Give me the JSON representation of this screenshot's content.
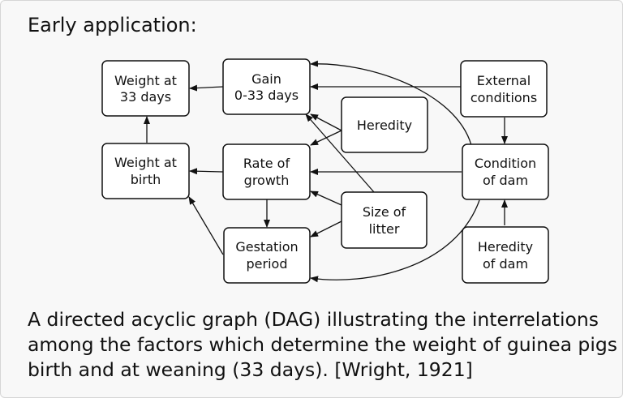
{
  "heading": "Early application:",
  "nodes": {
    "weight_33": [
      "Weight at",
      "33 days"
    ],
    "gain": [
      "Gain",
      "0-33 days"
    ],
    "external": [
      "External",
      "conditions"
    ],
    "heredity": [
      "Heredity"
    ],
    "weight_birth": [
      "Weight at",
      "birth"
    ],
    "rate_growth": [
      "Rate of",
      "growth"
    ],
    "condition_dam": [
      "Condition",
      "of dam"
    ],
    "size_litter": [
      "Size of",
      "litter"
    ],
    "gestation": [
      "Gestation",
      "period"
    ],
    "heredity_dam": [
      "Heredity",
      "of dam"
    ]
  },
  "edges": [
    {
      "from": "Gain 0-33 days",
      "to": "Weight at 33 days"
    },
    {
      "from": "Weight at birth",
      "to": "Weight at 33 days"
    },
    {
      "from": "External conditions",
      "to": "Gain 0-33 days"
    },
    {
      "from": "External conditions",
      "to": "Condition of dam"
    },
    {
      "from": "Heredity",
      "to": "Gain 0-33 days"
    },
    {
      "from": "Heredity",
      "to": "Rate of growth"
    },
    {
      "from": "Condition of dam",
      "to": "Gain 0-33 days"
    },
    {
      "from": "Condition of dam",
      "to": "Rate of growth"
    },
    {
      "from": "Condition of dam",
      "to": "Gestation period"
    },
    {
      "from": "Heredity of dam",
      "to": "Condition of dam"
    },
    {
      "from": "Rate of growth",
      "to": "Weight at birth"
    },
    {
      "from": "Rate of growth",
      "to": "Gestation period"
    },
    {
      "from": "Gestation period",
      "to": "Weight at birth"
    },
    {
      "from": "Size of litter",
      "to": "Gain 0-33 days"
    },
    {
      "from": "Size of litter",
      "to": "Rate of growth"
    },
    {
      "from": "Size of litter",
      "to": "Gestation period"
    }
  ],
  "caption": {
    "line1": "A directed acyclic graph (DAG) illustrating the interrelations",
    "line2": "among the factors which determine the weight of guinea pigs at",
    "line3": "birth and at weaning (33 days).  [Wright, 1921]"
  }
}
